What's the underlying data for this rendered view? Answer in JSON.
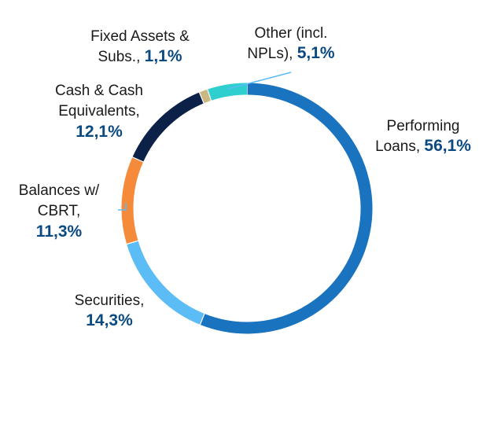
{
  "chart_data": {
    "type": "pie",
    "variant": "donut",
    "title": "",
    "start_angle_deg": 0,
    "direction": "clockwise",
    "slices": [
      {
        "line1": "Performing",
        "line2": "Loans,",
        "value_label": "56,1%",
        "value": 56.1,
        "color": "#1a73bf"
      },
      {
        "line1": "Securities,",
        "line2": "",
        "value_label": "14,3%",
        "value": 14.3,
        "color": "#5cbcf5"
      },
      {
        "line1": "Balances w/",
        "line2": "CBRT,",
        "value_label": "11,3%",
        "value": 11.3,
        "color": "#f58a3a"
      },
      {
        "line1": "Cash & Cash",
        "line2": "Equivalents,",
        "value_label": "12,1%",
        "value": 12.1,
        "color": "#0c2147"
      },
      {
        "line1": "Fixed Assets &",
        "line2": "Subs.,",
        "value_label": "1,1%",
        "value": 1.1,
        "color": "#c9b882"
      },
      {
        "line1": "Other (incl.",
        "line2": "NPLs),",
        "value_label": "5,1%",
        "value": 5.1,
        "color": "#2fcfd0"
      }
    ]
  }
}
